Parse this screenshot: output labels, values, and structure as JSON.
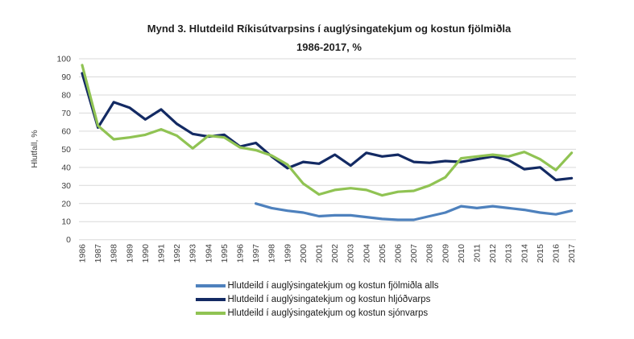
{
  "chart_data": {
    "type": "line",
    "title": "Mynd 3. Hlutdeild Ríkisútvarpsins í auglýsingatekjum og kostun fjölmiðla",
    "subtitle": "1986-2017, %",
    "ylabel": "Hlutfall, %",
    "ylim": [
      0,
      100
    ],
    "yticks": [
      0,
      10,
      20,
      30,
      40,
      50,
      60,
      70,
      80,
      90,
      100
    ],
    "grid": "horizontal-only",
    "gridline_color": "#D9D9D9",
    "legend_position": "bottom",
    "x": [
      "1986",
      "1987",
      "1988",
      "1989",
      "1990",
      "1991",
      "1992",
      "1993",
      "1994",
      "1995",
      "1996",
      "1997",
      "1998",
      "1999",
      "2000",
      "2001",
      "2002",
      "2003",
      "2004",
      "2005",
      "2006",
      "2007",
      "2008",
      "2009",
      "2010",
      "2011",
      "2012",
      "2013",
      "2014",
      "2015",
      "2016",
      "2017"
    ],
    "series": [
      {
        "name": "Hlutdeild í auglýsingatekjum og kostun fjölmiðla alls",
        "color": "#4E81BD",
        "values": [
          null,
          null,
          null,
          null,
          null,
          null,
          null,
          null,
          null,
          null,
          null,
          20,
          17.5,
          16,
          15,
          13,
          13.5,
          13.5,
          12.5,
          11.5,
          11,
          11,
          13,
          15,
          18.5,
          17.5,
          18.5,
          17.5,
          16.5,
          15,
          14,
          16
        ]
      },
      {
        "name": "Hlutdeild í auglýsingatekjum og kostun hljóðvarps",
        "color": "#132A63",
        "values": [
          92,
          62,
          76,
          73,
          66.5,
          72,
          64,
          58.5,
          57,
          58,
          51.5,
          53.5,
          46,
          39.5,
          43,
          42,
          47,
          41,
          48,
          46,
          47,
          43,
          42.5,
          43.5,
          43,
          44.5,
          46,
          44,
          39,
          40,
          33,
          34
        ]
      },
      {
        "name": "Hlutdeild í auglýsingatekjum og kostun sjónvarps",
        "color": "#90C353",
        "values": [
          96.5,
          63,
          55.5,
          56.5,
          58,
          61,
          57.5,
          50.5,
          57.5,
          56.5,
          51,
          49.5,
          46.5,
          41.5,
          31,
          25,
          27.5,
          28.5,
          27.5,
          24.5,
          26.5,
          27,
          30,
          34.5,
          45,
          46,
          47,
          46,
          48.5,
          44.5,
          38.5,
          48
        ]
      }
    ]
  }
}
